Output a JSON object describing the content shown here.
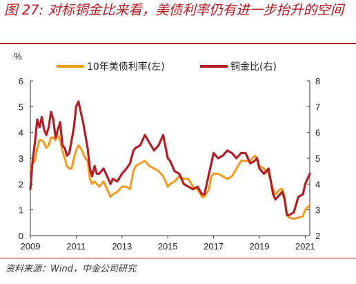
{
  "header": {
    "title": "图 27: 对标铜金比来看，美债利率仍有进一步抬升的空间"
  },
  "footer": {
    "source": "资料来源：Wind，中金公司研究"
  },
  "colors": {
    "brand_red": "#b8141c",
    "series_yield": "#f39a1e",
    "series_copper_gold": "#b21e26"
  },
  "chart_data": {
    "type": "line",
    "title": "",
    "xlabel": "",
    "ylabel": "%",
    "ylim": [
      0,
      6
    ],
    "y2lim": [
      2,
      8
    ],
    "x_range": [
      2009.0,
      2021.2
    ],
    "x_ticks": [
      2009,
      2011,
      2013,
      2015,
      2017,
      2019,
      2021
    ],
    "y_ticks": [
      0,
      1,
      2,
      3,
      4,
      5,
      6
    ],
    "y2_ticks": [
      2,
      3,
      4,
      5,
      6,
      7,
      8
    ],
    "grid": false,
    "legend_position": "top",
    "series": [
      {
        "name": "10年美债利率(左)",
        "axis": "left",
        "color": "#f39a1e",
        "x": [
          2009.0,
          2009.1,
          2009.2,
          2009.3,
          2009.4,
          2009.5,
          2009.6,
          2009.7,
          2009.8,
          2009.9,
          2010.0,
          2010.1,
          2010.2,
          2010.3,
          2010.4,
          2010.5,
          2010.6,
          2010.7,
          2010.8,
          2010.9,
          2011.0,
          2011.1,
          2011.2,
          2011.3,
          2011.4,
          2011.5,
          2011.6,
          2011.7,
          2011.8,
          2011.9,
          2012.0,
          2012.2,
          2012.4,
          2012.5,
          2012.6,
          2012.8,
          2013.0,
          2013.2,
          2013.35,
          2013.5,
          2013.6,
          2013.8,
          2014.0,
          2014.2,
          2014.4,
          2014.6,
          2014.8,
          2015.0,
          2015.1,
          2015.3,
          2015.5,
          2015.7,
          2015.9,
          2016.1,
          2016.3,
          2016.5,
          2016.6,
          2016.8,
          2016.9,
          2017.0,
          2017.2,
          2017.4,
          2017.6,
          2017.8,
          2018.0,
          2018.2,
          2018.4,
          2018.6,
          2018.8,
          2018.9,
          2019.0,
          2019.2,
          2019.4,
          2019.6,
          2019.7,
          2019.9,
          2020.0,
          2020.1,
          2020.2,
          2020.3,
          2020.5,
          2020.7,
          2020.9,
          2021.0,
          2021.1,
          2021.2
        ],
        "values": [
          2.5,
          2.8,
          2.9,
          3.4,
          3.7,
          3.7,
          3.6,
          3.4,
          3.5,
          3.8,
          3.8,
          3.7,
          3.9,
          3.7,
          3.3,
          3.0,
          2.7,
          2.6,
          2.6,
          3.0,
          3.3,
          3.5,
          3.4,
          3.2,
          3.0,
          2.9,
          2.2,
          2.0,
          2.1,
          2.0,
          1.9,
          2.1,
          1.7,
          1.5,
          1.6,
          1.7,
          1.9,
          1.9,
          1.8,
          2.5,
          2.7,
          2.8,
          2.9,
          2.7,
          2.6,
          2.5,
          2.3,
          1.9,
          2.0,
          2.1,
          2.3,
          2.2,
          2.2,
          1.9,
          1.8,
          1.5,
          1.5,
          1.8,
          2.3,
          2.4,
          2.4,
          2.3,
          2.2,
          2.3,
          2.6,
          2.9,
          2.9,
          2.9,
          3.1,
          3.0,
          2.7,
          2.6,
          2.4,
          1.8,
          1.6,
          1.8,
          1.8,
          1.5,
          0.8,
          0.7,
          0.65,
          0.7,
          0.75,
          1.0,
          1.1,
          1.2
        ]
      },
      {
        "name": "铜金比(右)",
        "axis": "right",
        "color": "#b21e26",
        "x": [
          2009.0,
          2009.1,
          2009.2,
          2009.3,
          2009.4,
          2009.5,
          2009.6,
          2009.7,
          2009.8,
          2009.9,
          2010.0,
          2010.1,
          2010.2,
          2010.3,
          2010.4,
          2010.5,
          2010.6,
          2010.7,
          2010.8,
          2010.9,
          2011.0,
          2011.1,
          2011.2,
          2011.3,
          2011.4,
          2011.5,
          2011.6,
          2011.7,
          2011.8,
          2011.9,
          2012.0,
          2012.2,
          2012.4,
          2012.5,
          2012.6,
          2012.8,
          2013.0,
          2013.2,
          2013.35,
          2013.5,
          2013.6,
          2013.8,
          2014.0,
          2014.2,
          2014.4,
          2014.6,
          2014.8,
          2015.0,
          2015.1,
          2015.3,
          2015.5,
          2015.7,
          2015.9,
          2016.1,
          2016.3,
          2016.5,
          2016.6,
          2016.8,
          2016.9,
          2017.0,
          2017.2,
          2017.4,
          2017.6,
          2017.8,
          2018.0,
          2018.2,
          2018.4,
          2018.6,
          2018.8,
          2018.9,
          2019.0,
          2019.2,
          2019.4,
          2019.6,
          2019.7,
          2019.9,
          2020.0,
          2020.1,
          2020.2,
          2020.3,
          2020.5,
          2020.7,
          2020.9,
          2021.0,
          2021.1,
          2021.2
        ],
        "values": [
          3.8,
          4.9,
          5.6,
          6.5,
          6.2,
          6.6,
          6.1,
          5.9,
          6.2,
          6.8,
          6.5,
          5.8,
          6.1,
          6.4,
          5.5,
          5.4,
          5.1,
          5.2,
          5.7,
          6.2,
          7.0,
          7.2,
          6.8,
          6.4,
          5.9,
          5.4,
          4.6,
          4.3,
          4.7,
          4.4,
          4.4,
          4.6,
          4.2,
          4.0,
          4.2,
          4.1,
          4.4,
          4.6,
          4.8,
          5.3,
          5.4,
          5.5,
          5.9,
          5.6,
          5.3,
          5.5,
          5.9,
          5.0,
          4.9,
          4.5,
          4.4,
          4.0,
          3.9,
          3.8,
          3.9,
          3.6,
          3.6,
          4.4,
          4.8,
          5.2,
          5.0,
          5.1,
          5.3,
          5.2,
          5.0,
          5.2,
          5.2,
          4.8,
          4.9,
          5.0,
          4.6,
          4.4,
          4.6,
          3.6,
          3.4,
          3.6,
          3.7,
          3.4,
          2.8,
          2.8,
          2.9,
          3.5,
          3.6,
          4.0,
          4.2,
          4.4
        ]
      }
    ]
  }
}
